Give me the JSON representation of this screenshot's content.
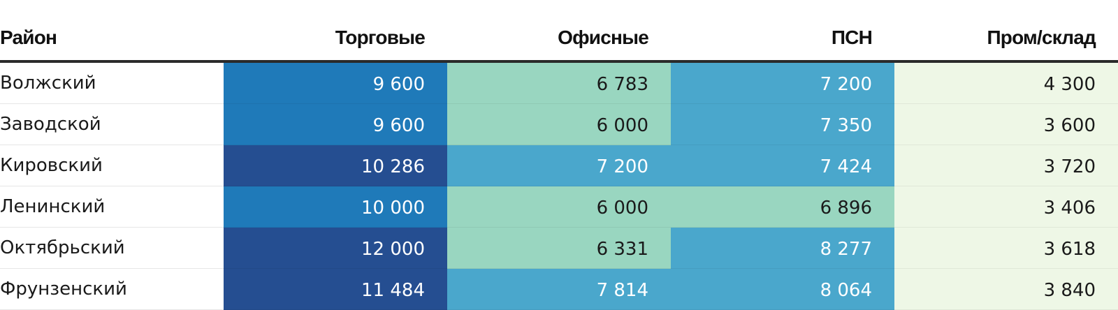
{
  "chart_data": {
    "type": "table",
    "columns": [
      "Район",
      "Торговые",
      "Офисные",
      "ПСН",
      "Пром/склад"
    ],
    "rows": [
      {
        "label": "Волжский",
        "values": [
          9600,
          6783,
          7200,
          4300
        ],
        "display": [
          "9 600",
          "6 783",
          "7 200",
          "4 300"
        ]
      },
      {
        "label": "Заводской",
        "values": [
          9600,
          6000,
          7350,
          3600
        ],
        "display": [
          "9 600",
          "6 000",
          "7 350",
          "3 600"
        ]
      },
      {
        "label": "Кировский",
        "values": [
          10286,
          7200,
          7424,
          3720
        ],
        "display": [
          "10 286",
          "7 200",
          "7 424",
          "3 720"
        ]
      },
      {
        "label": "Ленинский",
        "values": [
          10000,
          6000,
          6896,
          3406
        ],
        "display": [
          "10 000",
          "6 000",
          "6 896",
          "3 406"
        ]
      },
      {
        "label": "Октябрьский",
        "values": [
          12000,
          6331,
          8277,
          3618
        ],
        "display": [
          "12 000",
          "6 331",
          "8 277",
          "3 618"
        ]
      },
      {
        "label": "Фрунзенский",
        "values": [
          11484,
          7814,
          8064,
          3840
        ],
        "display": [
          "11 484",
          "7 814",
          "8 064",
          "3 840"
        ]
      }
    ],
    "color_scale": {
      "thresholds": [
        4500,
        7000,
        9000,
        10200
      ],
      "colors": [
        "#eef7e6",
        "#99d6c0",
        "#4aa7cc",
        "#1f7ab9",
        "#254e91"
      ],
      "text_colors": [
        "#1a1a1a",
        "#1a1a1a",
        "#ffffff",
        "#ffffff",
        "#ffffff"
      ]
    }
  }
}
